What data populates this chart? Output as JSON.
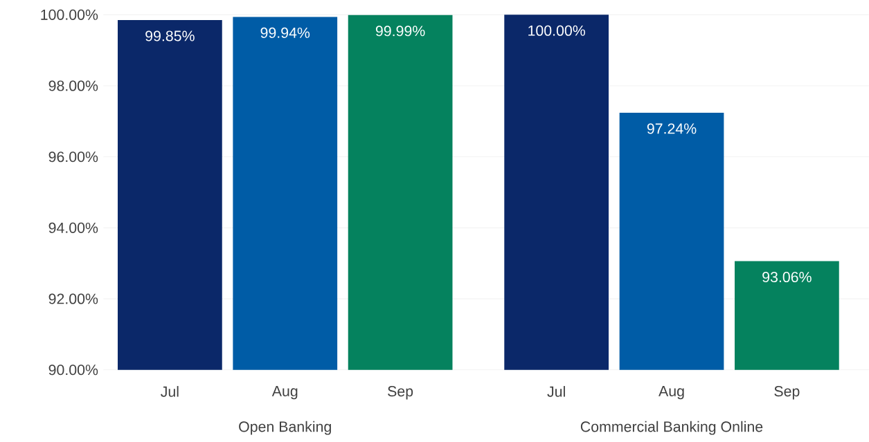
{
  "chart_data": {
    "type": "bar",
    "categories": [
      "Open Banking",
      "Commercial Banking Online"
    ],
    "series": [
      {
        "name": "Jul",
        "color": "#0b2869",
        "values": [
          99.85,
          100.0
        ],
        "value_labels": [
          "99.85%",
          "100.00%"
        ]
      },
      {
        "name": "Aug",
        "color": "#005ca6",
        "values": [
          99.94,
          97.24
        ],
        "value_labels": [
          "99.94%",
          "97.24%"
        ]
      },
      {
        "name": "Sep",
        "color": "#05825e",
        "values": [
          99.99,
          93.06
        ],
        "value_labels": [
          "99.99%",
          "93.06%"
        ]
      }
    ],
    "ylim": [
      90,
      100
    ],
    "yticks": [
      {
        "value": 90,
        "label": "90.00%"
      },
      {
        "value": 92,
        "label": "92.00%"
      },
      {
        "value": 94,
        "label": "94.00%"
      },
      {
        "value": 96,
        "label": "96.00%"
      },
      {
        "value": 98,
        "label": "98.00%"
      },
      {
        "value": 100,
        "label": "100.00%"
      }
    ],
    "grid": "y"
  }
}
